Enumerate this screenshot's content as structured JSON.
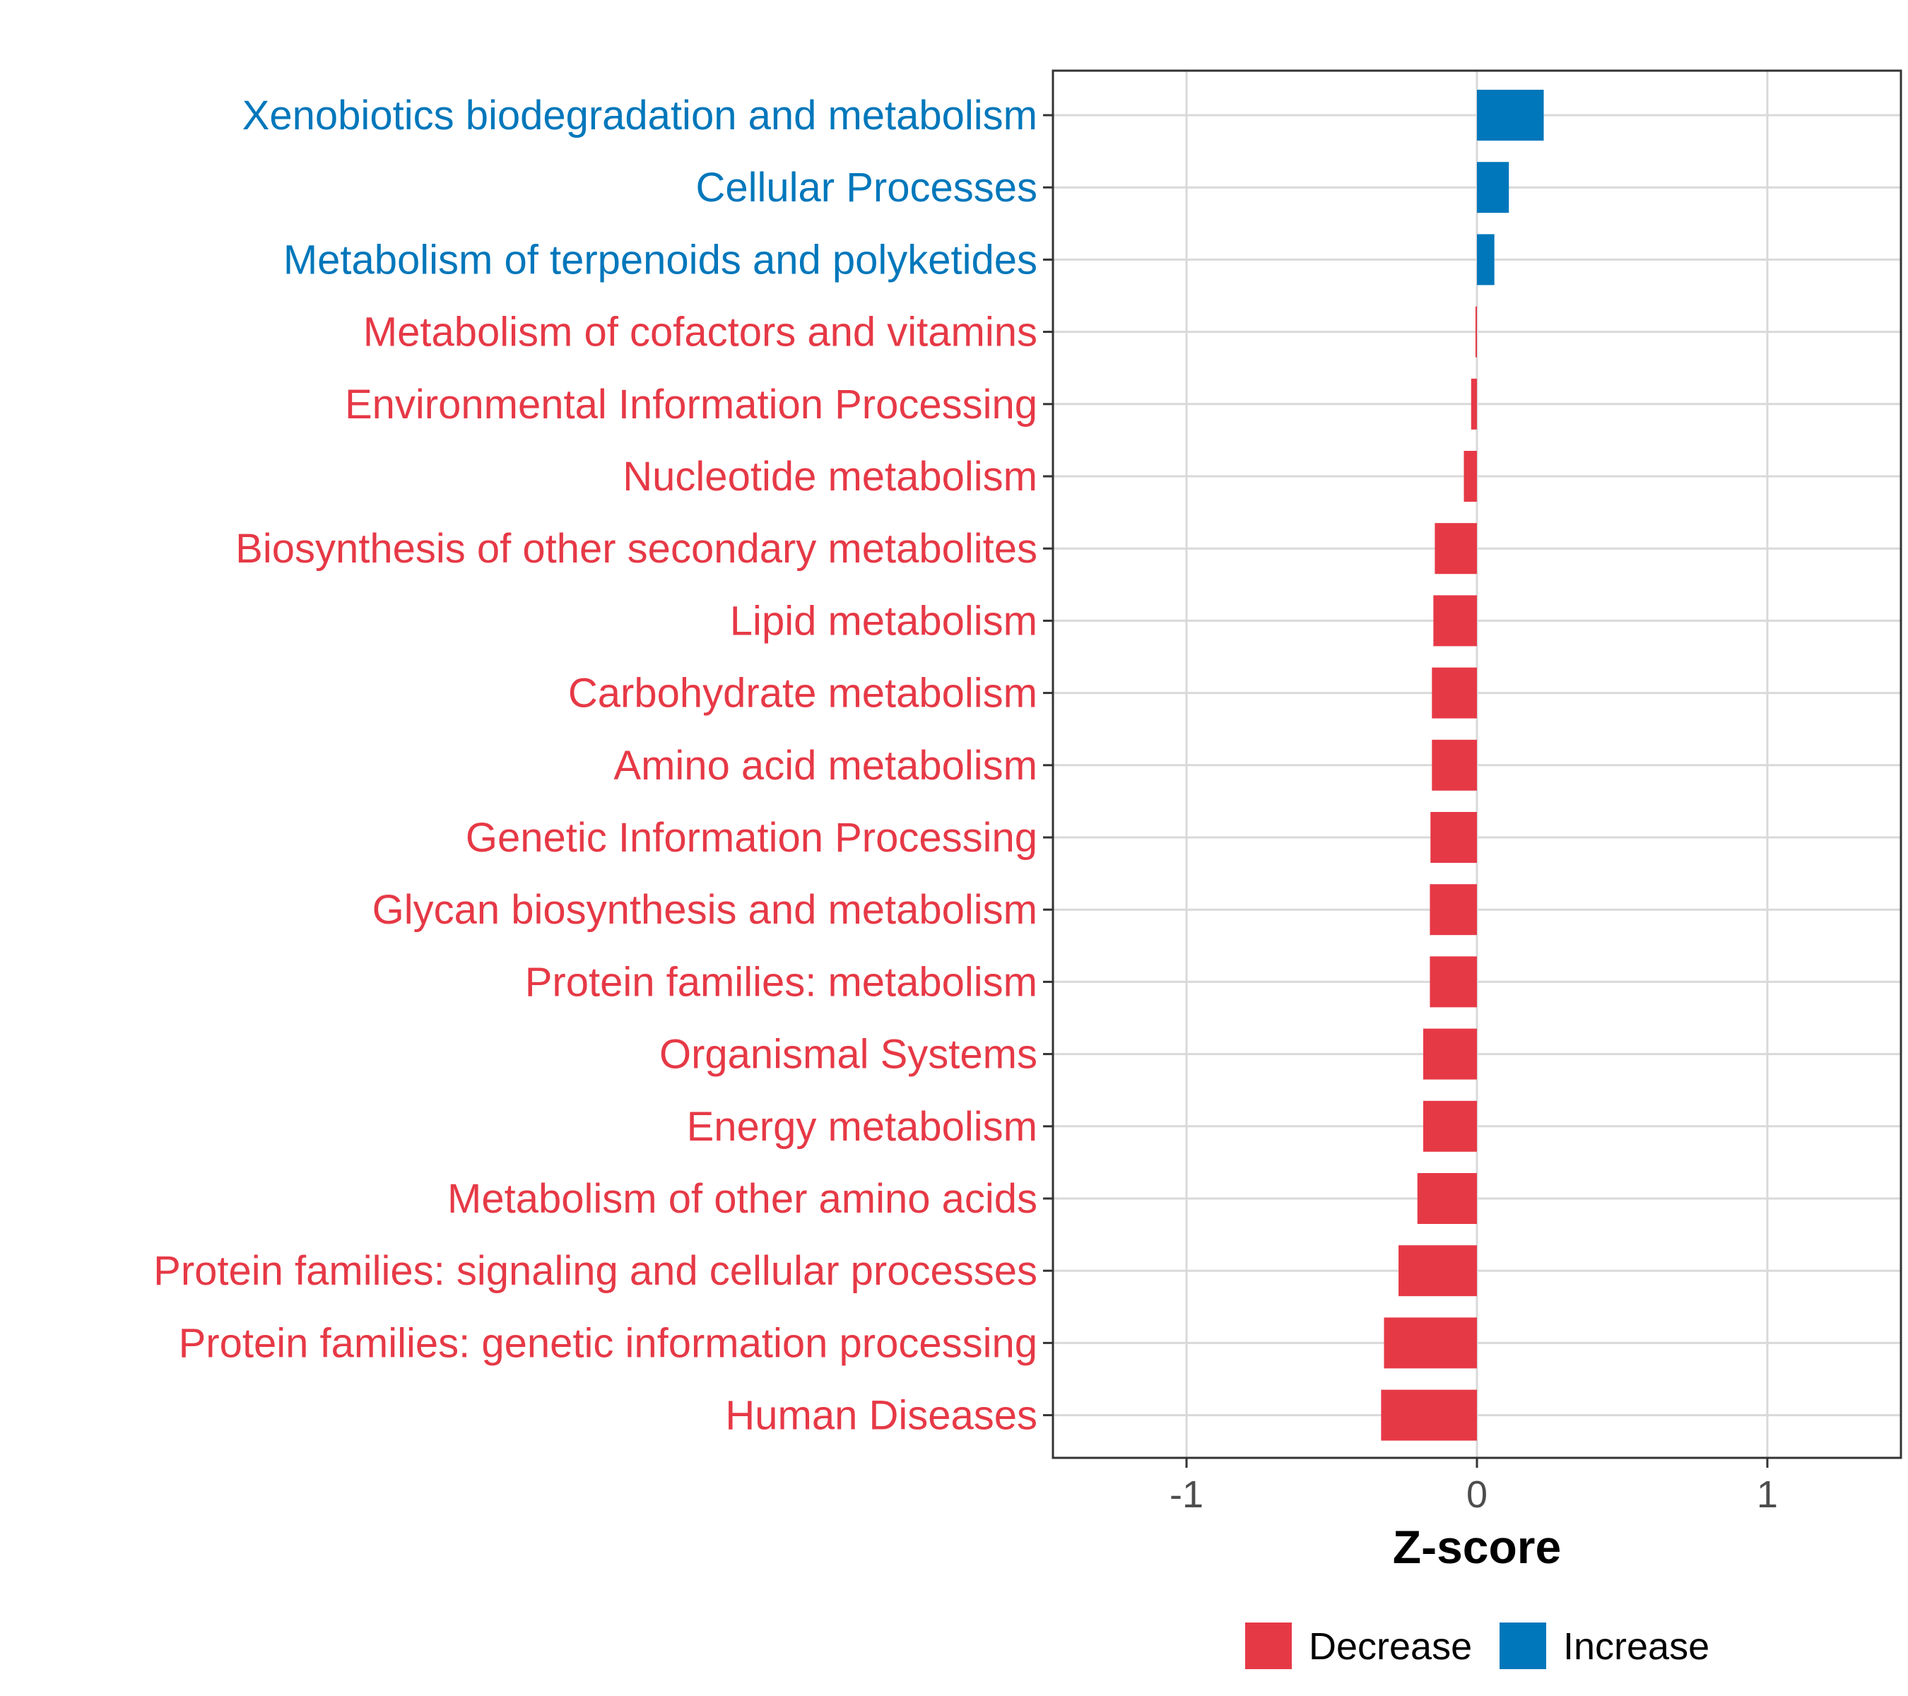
{
  "chart_data": {
    "type": "bar",
    "orientation": "horizontal",
    "categories": [
      "Xenobiotics biodegradation and metabolism",
      "Cellular Processes",
      "Metabolism of terpenoids and polyketides",
      "Metabolism of cofactors and vitamins",
      "Environmental Information Processing",
      "Nucleotide metabolism",
      "Biosynthesis of other secondary metabolites",
      "Lipid metabolism",
      "Carbohydrate metabolism",
      "Amino acid metabolism",
      "Genetic Information Processing",
      "Glycan biosynthesis and metabolism",
      "Protein families: metabolism",
      "Organismal Systems",
      "Energy metabolism",
      "Metabolism of other amino acids",
      "Protein families: signaling and cellular processes",
      "Protein families: genetic information processing",
      "Human Diseases"
    ],
    "values": [
      0.23,
      0.11,
      0.06,
      -0.005,
      -0.02,
      -0.045,
      -0.145,
      -0.15,
      -0.155,
      -0.155,
      -0.16,
      -0.162,
      -0.162,
      -0.185,
      -0.185,
      -0.205,
      -0.27,
      -0.32,
      -0.33
    ],
    "groups": [
      "Increase",
      "Increase",
      "Increase",
      "Decrease",
      "Decrease",
      "Decrease",
      "Decrease",
      "Decrease",
      "Decrease",
      "Decrease",
      "Decrease",
      "Decrease",
      "Decrease",
      "Decrease",
      "Decrease",
      "Decrease",
      "Decrease",
      "Decrease",
      "Decrease"
    ],
    "xlabel": "Z-score",
    "ylabel": "",
    "xlim": [
      -1.46,
      1.46
    ],
    "xticks": [
      -1,
      0,
      1
    ],
    "xtick_labels": [
      "-1",
      "0",
      "1"
    ],
    "grid": true,
    "legend": {
      "position": "bottom",
      "entries": [
        {
          "label": "Decrease",
          "color": "#e63946"
        },
        {
          "label": "Increase",
          "color": "#0077bb"
        }
      ]
    },
    "colors": {
      "Decrease": "#e63946",
      "Increase": "#0077bb",
      "grid": "#d9d9d9",
      "panel_border": "#333333",
      "tick_label": "#4d4d4d"
    }
  }
}
